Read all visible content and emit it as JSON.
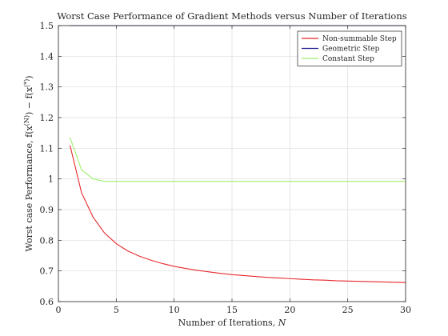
{
  "chart_data": {
    "type": "line",
    "title": "Worst Case Performance of Gradient Methods versus Number of Iterations",
    "xlabel": "Number of Iterations, N",
    "ylabel": "Worst case Performance, f(x^(N)) − f(x^(*))",
    "xlim": [
      0,
      30
    ],
    "ylim": [
      0.6,
      1.5
    ],
    "xticks": [
      0,
      5,
      10,
      15,
      20,
      25,
      30
    ],
    "yticks": [
      0.6,
      0.7,
      0.8,
      0.9,
      1.0,
      1.1,
      1.2,
      1.3,
      1.4,
      1.5
    ],
    "xtick_labels": [
      "0",
      "5",
      "10",
      "15",
      "20",
      "25",
      "30"
    ],
    "ytick_labels": [
      "0.6",
      "0.7",
      "0.8",
      "0.9",
      "1",
      "1.1",
      "1.2",
      "1.3",
      "1.4",
      "1.5"
    ],
    "grid": true,
    "legend_position": "top-right",
    "series": [
      {
        "name": "Non-summable Step",
        "color": "#e8282b",
        "x": [
          1,
          2,
          3,
          4,
          5,
          6,
          7,
          8,
          9,
          10,
          11,
          12,
          13,
          14,
          15,
          16,
          17,
          18,
          19,
          20,
          21,
          22,
          23,
          24,
          25,
          26,
          27,
          28,
          29,
          30
        ],
        "y": [
          1.11,
          0.955,
          0.875,
          0.823,
          0.789,
          0.765,
          0.748,
          0.735,
          0.724,
          0.715,
          0.708,
          0.702,
          0.697,
          0.692,
          0.688,
          0.685,
          0.682,
          0.679,
          0.677,
          0.675,
          0.673,
          0.671,
          0.67,
          0.668,
          0.667,
          0.666,
          0.665,
          0.664,
          0.663,
          0.662
        ]
      },
      {
        "name": "Geometric Step",
        "color": "#1f1f8f",
        "x": [
          1,
          2,
          3,
          4,
          5,
          6,
          7,
          8,
          9,
          10,
          11,
          12,
          13,
          14,
          15,
          16,
          17,
          18,
          19,
          20,
          21,
          22,
          23,
          24,
          25,
          26,
          27,
          28,
          29,
          30
        ],
        "y": [
          1.5,
          1.5,
          1.5,
          1.5,
          1.5,
          1.5,
          1.5,
          1.5,
          1.5,
          1.5,
          1.5,
          1.5,
          1.5,
          1.5,
          1.5,
          1.5,
          1.5,
          1.5,
          1.5,
          1.5,
          1.5,
          1.5,
          1.5,
          1.5,
          1.5,
          1.5,
          1.5,
          1.5,
          1.5,
          1.5
        ]
      },
      {
        "name": "Constant Step",
        "color": "#9ef06b",
        "x": [
          1,
          2,
          3,
          4,
          5,
          6,
          7,
          8,
          9,
          10,
          11,
          12,
          13,
          14,
          15,
          16,
          17,
          18,
          19,
          20,
          21,
          22,
          23,
          24,
          25,
          26,
          27,
          28,
          29,
          30
        ],
        "y": [
          1.135,
          1.03,
          1.0,
          0.992,
          0.992,
          0.992,
          0.992,
          0.992,
          0.992,
          0.992,
          0.992,
          0.992,
          0.992,
          0.992,
          0.992,
          0.992,
          0.992,
          0.992,
          0.992,
          0.992,
          0.992,
          0.992,
          0.992,
          0.992,
          0.992,
          0.992,
          0.992,
          0.992,
          0.992,
          0.992
        ]
      }
    ]
  }
}
